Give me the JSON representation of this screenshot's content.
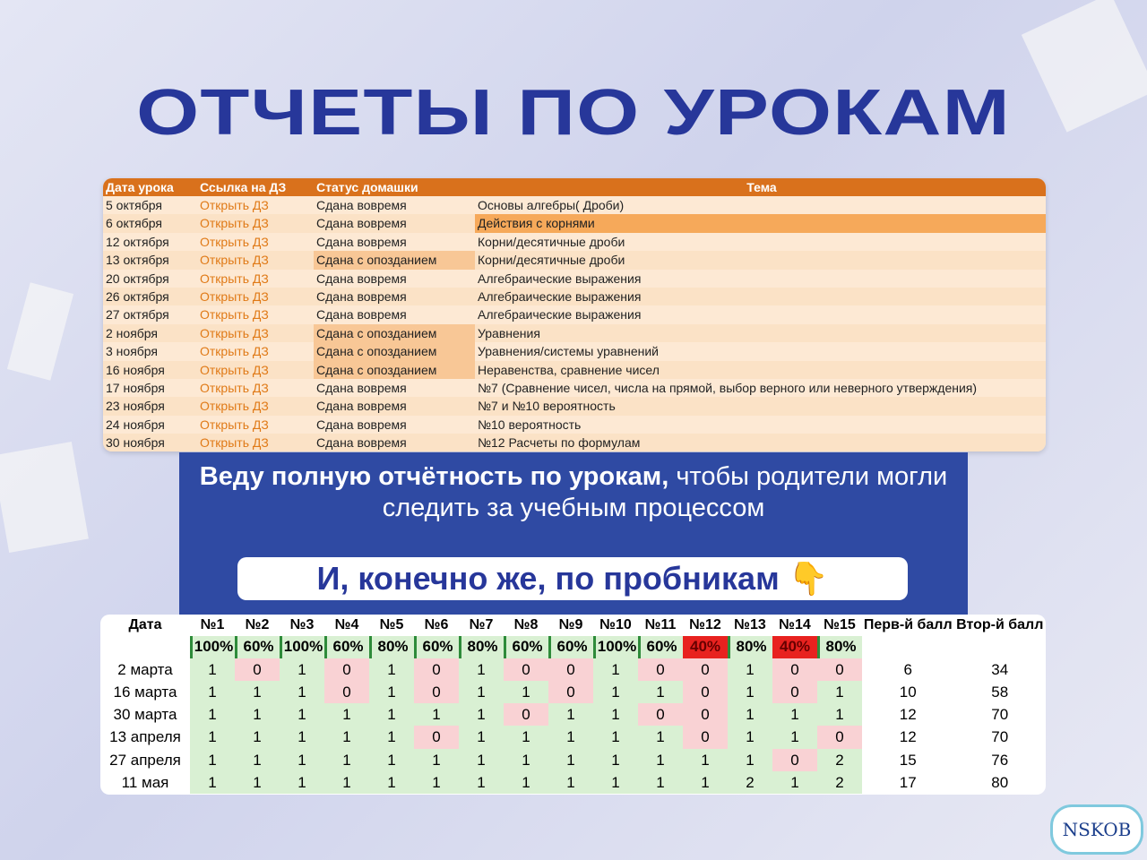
{
  "title": "ОТЧЕТЫ ПО УРОКАМ",
  "lessons": {
    "headers": [
      "Дата урока",
      "Ссылка на ДЗ",
      "Статус домашки",
      "Тема"
    ],
    "rows": [
      [
        "5 октября",
        "Открыть ДЗ",
        "Сдана вовремя",
        "Основы алгебры( Дроби)"
      ],
      [
        "6 октября",
        "Открыть ДЗ",
        "Сдана вовремя",
        "Действия с корнями"
      ],
      [
        "12 октября",
        "Открыть ДЗ",
        "Сдана вовремя",
        "Корни/десятичные дроби"
      ],
      [
        "13 октября",
        "Открыть ДЗ",
        "Сдана с опозданием",
        "Корни/десятичные дроби"
      ],
      [
        "20 октября",
        "Открыть ДЗ",
        "Сдана вовремя",
        "Алгебраические выражения"
      ],
      [
        "26 октября",
        "Открыть ДЗ",
        "Сдана вовремя",
        "Алгебраические выражения"
      ],
      [
        "27 октября",
        "Открыть ДЗ",
        "Сдана вовремя",
        "Алгебраические выражения"
      ],
      [
        "2 ноября",
        "Открыть ДЗ",
        "Сдана с опозданием",
        "Уравнения"
      ],
      [
        "3 ноября",
        "Открыть ДЗ",
        "Сдана с опозданием",
        "Уравнения/системы уравнений"
      ],
      [
        "16 ноября",
        "Открыть ДЗ",
        "Сдана с опозданием",
        "Неравенства, сравнение чисел"
      ],
      [
        "17 ноября",
        "Открыть ДЗ",
        "Сдана вовремя",
        "№7 (Сравнение чисел, числа на прямой, выбор верного или неверного утверждения)"
      ],
      [
        "23 ноября",
        "Открыть ДЗ",
        "Сдана вовремя",
        "№7 и №10 вероятность"
      ],
      [
        "24 ноября",
        "Открыть ДЗ",
        "Сдана вовремя",
        "№10 вероятность"
      ],
      [
        "30 ноября",
        "Открыть ДЗ",
        "Сдана вовремя",
        "№12 Расчеты по формулам"
      ]
    ]
  },
  "caption": {
    "bold": "Веду полную отчётность по урокам,",
    "rest": "чтобы родители  могли следить за учебным процессом"
  },
  "banner": "И, конечно же, по пробникам 👇",
  "exams": {
    "headers": [
      "Дата",
      "№1",
      "№2",
      "№3",
      "№4",
      "№5",
      "№6",
      "№7",
      "№8",
      "№9",
      "№10",
      "№11",
      "№12",
      "№13",
      "№14",
      "№15",
      "Перв-й балл",
      "Втор-й балл"
    ],
    "percents": [
      "100%",
      "60%",
      "100%",
      "60%",
      "80%",
      "60%",
      "80%",
      "60%",
      "60%",
      "100%",
      "60%",
      "40%",
      "80%",
      "40%",
      "80%"
    ],
    "rows": [
      [
        "2 марта",
        1,
        0,
        1,
        0,
        1,
        0,
        1,
        0,
        0,
        1,
        0,
        0,
        1,
        0,
        0,
        6,
        34
      ],
      [
        "16 марта",
        1,
        1,
        1,
        0,
        1,
        0,
        1,
        1,
        0,
        1,
        1,
        0,
        1,
        0,
        1,
        10,
        58
      ],
      [
        "30 марта",
        1,
        1,
        1,
        1,
        1,
        1,
        1,
        0,
        1,
        1,
        0,
        0,
        1,
        1,
        1,
        12,
        70
      ],
      [
        "13 апреля",
        1,
        1,
        1,
        1,
        1,
        0,
        1,
        1,
        1,
        1,
        1,
        0,
        1,
        1,
        0,
        12,
        70
      ],
      [
        "27 апреля",
        1,
        1,
        1,
        1,
        1,
        1,
        1,
        1,
        1,
        1,
        1,
        1,
        1,
        0,
        2,
        15,
        76
      ],
      [
        "11 мая",
        1,
        1,
        1,
        1,
        1,
        1,
        1,
        1,
        1,
        1,
        1,
        1,
        2,
        1,
        2,
        17,
        80
      ]
    ]
  },
  "watermark": "NSKOB"
}
